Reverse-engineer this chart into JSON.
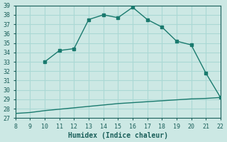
{
  "xlabel": "Humidex (Indice chaleur)",
  "ylabel": "",
  "bg_color": "#cce8e4",
  "line_color": "#1a7a6e",
  "grid_color": "#aad8d4",
  "x_main": [
    10,
    11,
    12,
    13,
    14,
    15,
    16,
    17,
    18,
    19,
    20,
    21,
    22
  ],
  "y_main": [
    33.0,
    34.2,
    34.4,
    37.5,
    38.0,
    37.7,
    38.8,
    37.5,
    36.7,
    35.2,
    34.8,
    31.8,
    29.2
  ],
  "x_flat": [
    8,
    9,
    10,
    11,
    12,
    13,
    14,
    15,
    16,
    17,
    18,
    19,
    20,
    21,
    22
  ],
  "y_flat": [
    27.5,
    27.6,
    27.8,
    27.95,
    28.1,
    28.25,
    28.4,
    28.55,
    28.65,
    28.75,
    28.85,
    28.95,
    29.05,
    29.1,
    29.2
  ],
  "xlim": [
    8,
    22
  ],
  "ylim": [
    27,
    39
  ],
  "xticks": [
    8,
    9,
    10,
    11,
    12,
    13,
    14,
    15,
    16,
    17,
    18,
    19,
    20,
    21,
    22
  ],
  "yticks": [
    27,
    28,
    29,
    30,
    31,
    32,
    33,
    34,
    35,
    36,
    37,
    38,
    39
  ],
  "font_color": "#1a5f5a",
  "font_family": "monospace"
}
